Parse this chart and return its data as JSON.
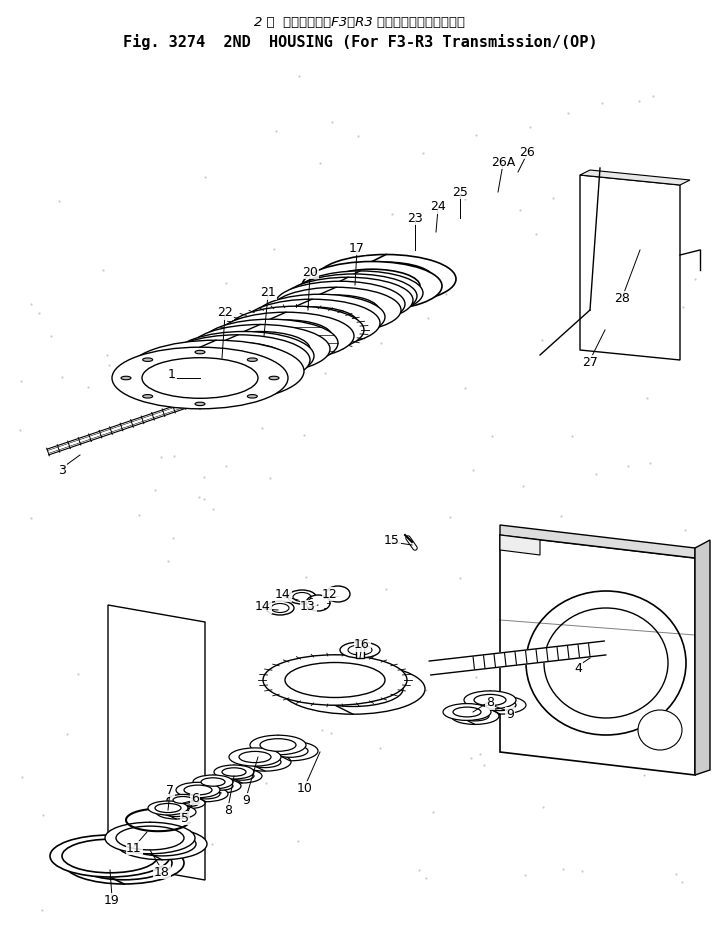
{
  "title_jp": "2 速  ハウジング（F3・R3 トランスミッション用）",
  "title_en": "Fig. 3274  2ND  HOUSING (For F3-R3 Transmission/(OP)",
  "bg_color": "#ffffff",
  "line_color": "#000000"
}
